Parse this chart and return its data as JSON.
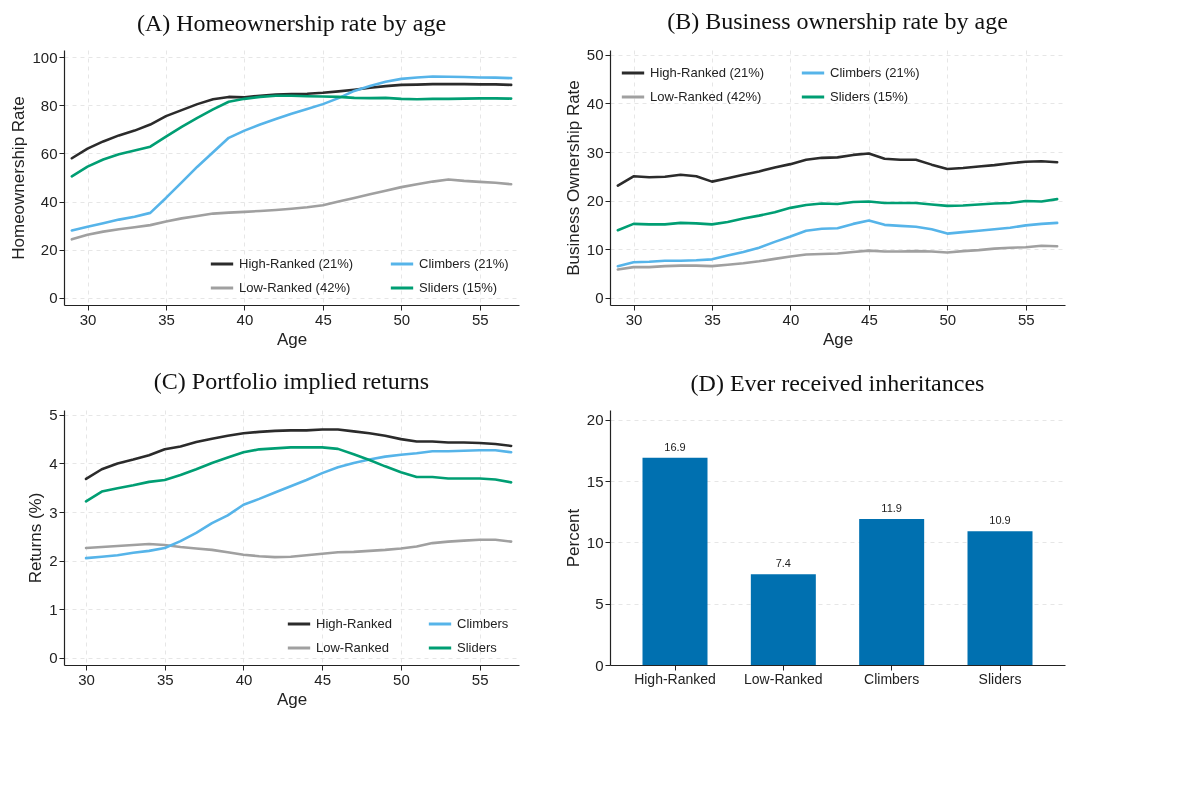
{
  "chart_data": [
    {
      "type": "line",
      "title": "(A) Homeownership rate by age",
      "xlabel": "Age",
      "ylabel": "Homeownership Rate",
      "x": [
        29,
        30,
        31,
        32,
        33,
        34,
        35,
        36,
        37,
        38,
        39,
        40,
        41,
        42,
        43,
        44,
        45,
        46,
        47,
        48,
        49,
        50,
        51,
        52,
        53,
        54,
        55,
        56,
        57
      ],
      "xlim": [
        28.5,
        57.5
      ],
      "xticks": [
        30,
        35,
        40,
        45,
        50,
        55
      ],
      "ylim": [
        -3,
        103
      ],
      "yticks": [
        0,
        20,
        40,
        60,
        80,
        100
      ],
      "grid": true,
      "legend": "bottom right",
      "line_style": "solid",
      "series": [
        {
          "name": "High-Ranked (21%)",
          "color": "#2b2b2b",
          "values": [
            58,
            62,
            65,
            67.5,
            69.5,
            72,
            75.5,
            78,
            80.5,
            82.5,
            83.5,
            83.3,
            84,
            84.5,
            84.7,
            84.8,
            85.2,
            85.8,
            86.5,
            87.3,
            88,
            88.5,
            88.6,
            88.8,
            88.8,
            88.8,
            88.7,
            88.7,
            88.5
          ]
        },
        {
          "name": "Low-Ranked (42%)",
          "color": "#a0a0a0",
          "values": [
            24.3,
            26.2,
            27.5,
            28.5,
            29.3,
            30.2,
            31.7,
            33,
            34,
            35,
            35.4,
            35.7,
            36.1,
            36.5,
            37,
            37.6,
            38.5,
            40,
            41.5,
            43,
            44.5,
            46,
            47.2,
            48.3,
            49.2,
            48.6,
            48.2,
            47.8,
            47.2
          ]
        },
        {
          "name": "Climbers (21%)",
          "color": "#56b4e9",
          "values": [
            28,
            29.5,
            31,
            32.5,
            33.7,
            35.3,
            41.5,
            48,
            54.5,
            60.5,
            66.5,
            69.5,
            72,
            74.3,
            76.5,
            78.5,
            80.5,
            83,
            86,
            88,
            89.8,
            91,
            91.6,
            92,
            91.9,
            91.8,
            91.6,
            91.5,
            91.3
          ]
        },
        {
          "name": "Sliders (15%)",
          "color": "#009e73",
          "values": [
            50.5,
            54.5,
            57.5,
            59.7,
            61.2,
            62.8,
            67,
            71,
            74.8,
            78.3,
            81.5,
            82.7,
            83.5,
            84,
            84,
            83.8,
            83.7,
            83.5,
            83.1,
            83,
            83.1,
            82.7,
            82.5,
            82.7,
            82.7,
            82.8,
            82.9,
            82.9,
            82.8
          ]
        }
      ]
    },
    {
      "type": "line",
      "title": "(B) Business ownership rate by age",
      "xlabel": "Age",
      "ylabel": "Business Ownership Rate",
      "x": [
        29,
        30,
        31,
        32,
        33,
        34,
        35,
        36,
        37,
        38,
        39,
        40,
        41,
        42,
        43,
        44,
        45,
        46,
        47,
        48,
        49,
        50,
        51,
        52,
        53,
        54,
        55,
        56,
        57
      ],
      "xlim": [
        28.5,
        57.5
      ],
      "xticks": [
        30,
        35,
        40,
        45,
        50,
        55
      ],
      "ylim": [
        -1.5,
        51
      ],
      "yticks": [
        0,
        10,
        20,
        30,
        40,
        50
      ],
      "grid": true,
      "legend": "top left",
      "line_style": "solid",
      "series": [
        {
          "name": "High-Ranked (21%)",
          "color": "#2b2b2b",
          "values": [
            23.1,
            25,
            24.8,
            24.9,
            25.3,
            25,
            23.9,
            24.6,
            25.3,
            26,
            26.8,
            27.5,
            28.4,
            28.8,
            28.9,
            29.4,
            29.7,
            28.6,
            28.4,
            28.4,
            27.4,
            26.5,
            26.7,
            27,
            27.3,
            27.7,
            28,
            28.1,
            27.9
          ]
        },
        {
          "name": "Low-Ranked (42%)",
          "color": "#a0a0a0",
          "values": [
            5.8,
            6.3,
            6.3,
            6.5,
            6.6,
            6.6,
            6.5,
            6.8,
            7.1,
            7.5,
            8,
            8.5,
            8.9,
            9,
            9.1,
            9.4,
            9.7,
            9.5,
            9.5,
            9.6,
            9.5,
            9.3,
            9.6,
            9.8,
            10.1,
            10.3,
            10.4,
            10.7,
            10.6
          ]
        },
        {
          "name": "Climbers (21%)",
          "color": "#56b4e9",
          "values": [
            6.5,
            7.3,
            7.4,
            7.6,
            7.6,
            7.7,
            7.9,
            8.7,
            9.4,
            10.3,
            11.5,
            12.6,
            13.8,
            14.2,
            14.3,
            15.2,
            15.9,
            15,
            14.8,
            14.6,
            14.1,
            13.2,
            13.5,
            13.8,
            14.1,
            14.4,
            14.9,
            15.2,
            15.4
          ]
        },
        {
          "name": "Sliders (15%)",
          "color": "#009e73",
          "values": [
            13.9,
            15.2,
            15.1,
            15.1,
            15.4,
            15.3,
            15.1,
            15.6,
            16.3,
            16.9,
            17.6,
            18.5,
            19.1,
            19.4,
            19.3,
            19.7,
            19.8,
            19.5,
            19.5,
            19.5,
            19.2,
            18.9,
            19,
            19.2,
            19.4,
            19.5,
            19.9,
            19.8,
            20.3
          ]
        }
      ]
    },
    {
      "type": "line",
      "title": "(C) Portfolio implied returns",
      "xlabel": "Age",
      "ylabel": "Returns (%)",
      "x": [
        30,
        31,
        32,
        33,
        34,
        35,
        36,
        37,
        38,
        39,
        40,
        41,
        42,
        43,
        44,
        45,
        46,
        47,
        48,
        49,
        50,
        51,
        52,
        53,
        54,
        55,
        56,
        57
      ],
      "xlim": [
        28.6,
        57.5
      ],
      "xticks": [
        30,
        35,
        40,
        45,
        50,
        55
      ],
      "ylim": [
        -0.15,
        5.1
      ],
      "yticks": [
        0,
        1,
        2,
        3,
        4,
        5
      ],
      "grid": true,
      "legend": "bottom right",
      "line_style": "solid",
      "series": [
        {
          "name": "High-Ranked",
          "color": "#2b2b2b",
          "values": [
            3.68,
            3.88,
            4.0,
            4.08,
            4.17,
            4.29,
            4.35,
            4.44,
            4.51,
            4.57,
            4.62,
            4.65,
            4.67,
            4.68,
            4.68,
            4.7,
            4.7,
            4.66,
            4.62,
            4.57,
            4.5,
            4.45,
            4.45,
            4.43,
            4.43,
            4.42,
            4.4,
            4.36
          ]
        },
        {
          "name": "Low-Ranked",
          "color": "#a0a0a0",
          "values": [
            2.26,
            2.28,
            2.3,
            2.32,
            2.34,
            2.32,
            2.28,
            2.25,
            2.22,
            2.17,
            2.12,
            2.09,
            2.07,
            2.08,
            2.11,
            2.14,
            2.17,
            2.18,
            2.2,
            2.22,
            2.25,
            2.29,
            2.36,
            2.39,
            2.41,
            2.43,
            2.43,
            2.39
          ]
        },
        {
          "name": "Climbers",
          "color": "#56b4e9",
          "values": [
            2.05,
            2.08,
            2.11,
            2.16,
            2.2,
            2.26,
            2.4,
            2.57,
            2.77,
            2.93,
            3.15,
            3.27,
            3.4,
            3.53,
            3.66,
            3.8,
            3.92,
            4.01,
            4.08,
            4.14,
            4.18,
            4.21,
            4.25,
            4.25,
            4.26,
            4.27,
            4.27,
            4.23
          ]
        },
        {
          "name": "Sliders",
          "color": "#009e73",
          "values": [
            3.22,
            3.42,
            3.49,
            3.55,
            3.62,
            3.66,
            3.76,
            3.88,
            4.01,
            4.12,
            4.23,
            4.29,
            4.31,
            4.33,
            4.33,
            4.33,
            4.3,
            4.19,
            4.07,
            3.94,
            3.82,
            3.72,
            3.72,
            3.69,
            3.69,
            3.69,
            3.67,
            3.61
          ]
        }
      ]
    },
    {
      "type": "bar",
      "title": "(D) Ever received inheritances",
      "ylabel": "Percent",
      "categories": [
        "High-Ranked",
        "Low-Ranked",
        "Climbers",
        "Sliders"
      ],
      "values": [
        16.9,
        7.4,
        11.9,
        10.9
      ],
      "color": "#0070b0",
      "ylim": [
        0,
        20.8
      ],
      "yticks": [
        0,
        5,
        10,
        15,
        20
      ],
      "grid": "y",
      "data_labels": true
    }
  ]
}
